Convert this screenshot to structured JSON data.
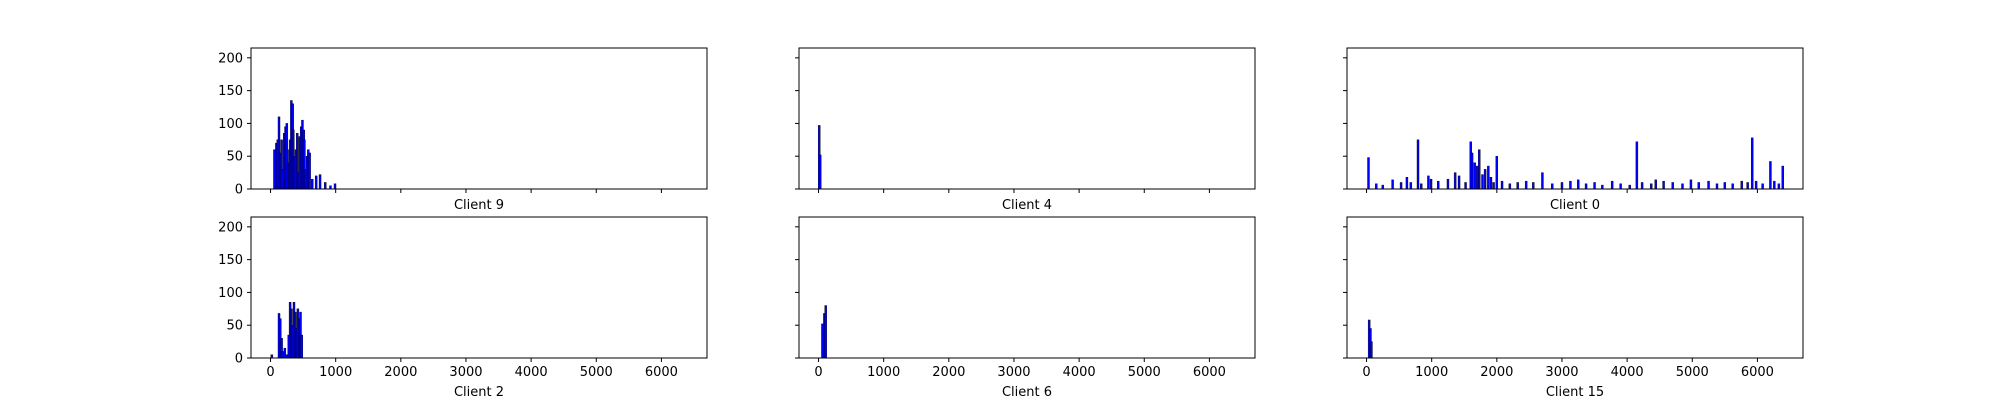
{
  "figure": {
    "bar_color": "#0000ff",
    "edge_color": "#000000",
    "background": "#ffffff"
  },
  "chart_data": [
    {
      "type": "bar",
      "title": "Client 9",
      "xlim": [
        -300,
        6700
      ],
      "ylim": [
        0,
        215
      ],
      "xticks": [
        0,
        1000,
        2000,
        3000,
        4000,
        5000,
        6000
      ],
      "yticks": [
        0,
        50,
        100,
        150,
        200
      ],
      "show_x_ticklabels": false,
      "show_y_ticklabels": true,
      "x": [
        60,
        90,
        110,
        130,
        150,
        170,
        190,
        210,
        230,
        250,
        270,
        290,
        300,
        320,
        340,
        350,
        370,
        390,
        410,
        430,
        450,
        470,
        490,
        510,
        520,
        540,
        560,
        580,
        600,
        640,
        700,
        760,
        840,
        920,
        990
      ],
      "values": [
        60,
        70,
        75,
        110,
        55,
        75,
        30,
        85,
        95,
        100,
        40,
        60,
        75,
        135,
        130,
        90,
        50,
        60,
        85,
        25,
        80,
        95,
        105,
        90,
        75,
        30,
        50,
        60,
        55,
        15,
        20,
        22,
        10,
        5,
        8
      ]
    },
    {
      "type": "bar",
      "title": "Client 4",
      "xlim": [
        -300,
        6700
      ],
      "ylim": [
        0,
        215
      ],
      "xticks": [
        0,
        1000,
        2000,
        3000,
        4000,
        5000,
        6000
      ],
      "yticks": [
        0,
        50,
        100,
        150,
        200
      ],
      "show_x_ticklabels": false,
      "show_y_ticklabels": false,
      "x": [
        10,
        25
      ],
      "values": [
        97,
        52
      ]
    },
    {
      "type": "bar",
      "title": "Client 0",
      "xlim": [
        -300,
        6700
      ],
      "ylim": [
        0,
        215
      ],
      "xticks": [
        0,
        1000,
        2000,
        3000,
        4000,
        5000,
        6000
      ],
      "yticks": [
        0,
        50,
        100,
        150,
        200
      ],
      "show_x_ticklabels": false,
      "show_y_ticklabels": false,
      "x": [
        30,
        150,
        250,
        400,
        530,
        620,
        680,
        790,
        840,
        950,
        990,
        1100,
        1250,
        1360,
        1420,
        1520,
        1600,
        1620,
        1660,
        1700,
        1730,
        1780,
        1820,
        1870,
        1910,
        1950,
        2000,
        2080,
        2200,
        2320,
        2450,
        2560,
        2700,
        2850,
        3000,
        3130,
        3250,
        3370,
        3500,
        3620,
        3770,
        3900,
        4040,
        4150,
        4230,
        4370,
        4440,
        4560,
        4700,
        4850,
        4980,
        5100,
        5250,
        5380,
        5500,
        5620,
        5760,
        5850,
        5920,
        5980,
        6080,
        6200,
        6260,
        6330,
        6390
      ],
      "values": [
        48,
        8,
        6,
        14,
        10,
        18,
        10,
        75,
        8,
        20,
        15,
        12,
        15,
        25,
        20,
        10,
        72,
        55,
        40,
        35,
        60,
        22,
        30,
        35,
        18,
        10,
        50,
        12,
        8,
        10,
        12,
        10,
        25,
        8,
        10,
        12,
        14,
        8,
        10,
        6,
        12,
        8,
        6,
        72,
        10,
        8,
        14,
        12,
        10,
        8,
        14,
        10,
        12,
        8,
        10,
        8,
        12,
        10,
        78,
        12,
        8,
        42,
        12,
        8,
        35
      ]
    },
    {
      "type": "bar",
      "title": "Client 2",
      "xlim": [
        -300,
        6700
      ],
      "ylim": [
        0,
        215
      ],
      "xticks": [
        0,
        1000,
        2000,
        3000,
        4000,
        5000,
        6000
      ],
      "yticks": [
        0,
        50,
        100,
        150,
        200
      ],
      "show_x_ticklabels": true,
      "show_y_ticklabels": true,
      "x": [
        20,
        130,
        150,
        170,
        190,
        220,
        250,
        280,
        300,
        320,
        340,
        360,
        380,
        400,
        420,
        440,
        460,
        480
      ],
      "values": [
        5,
        68,
        60,
        30,
        10,
        15,
        5,
        35,
        85,
        75,
        50,
        85,
        70,
        45,
        75,
        60,
        70,
        35
      ]
    },
    {
      "type": "bar",
      "title": "Client 6",
      "xlim": [
        -300,
        6700
      ],
      "ylim": [
        0,
        215
      ],
      "xticks": [
        0,
        1000,
        2000,
        3000,
        4000,
        5000,
        6000
      ],
      "yticks": [
        0,
        50,
        100,
        150,
        200
      ],
      "show_x_ticklabels": true,
      "show_y_ticklabels": false,
      "x": [
        60,
        90,
        110
      ],
      "values": [
        52,
        68,
        80
      ]
    },
    {
      "type": "bar",
      "title": "Client 15",
      "xlim": [
        -300,
        6700
      ],
      "ylim": [
        0,
        215
      ],
      "xticks": [
        0,
        1000,
        2000,
        3000,
        4000,
        5000,
        6000
      ],
      "yticks": [
        0,
        50,
        100,
        150,
        200
      ],
      "show_x_ticklabels": true,
      "show_y_ticklabels": false,
      "x": [
        40,
        60,
        75
      ],
      "values": [
        58,
        45,
        25
      ]
    }
  ]
}
